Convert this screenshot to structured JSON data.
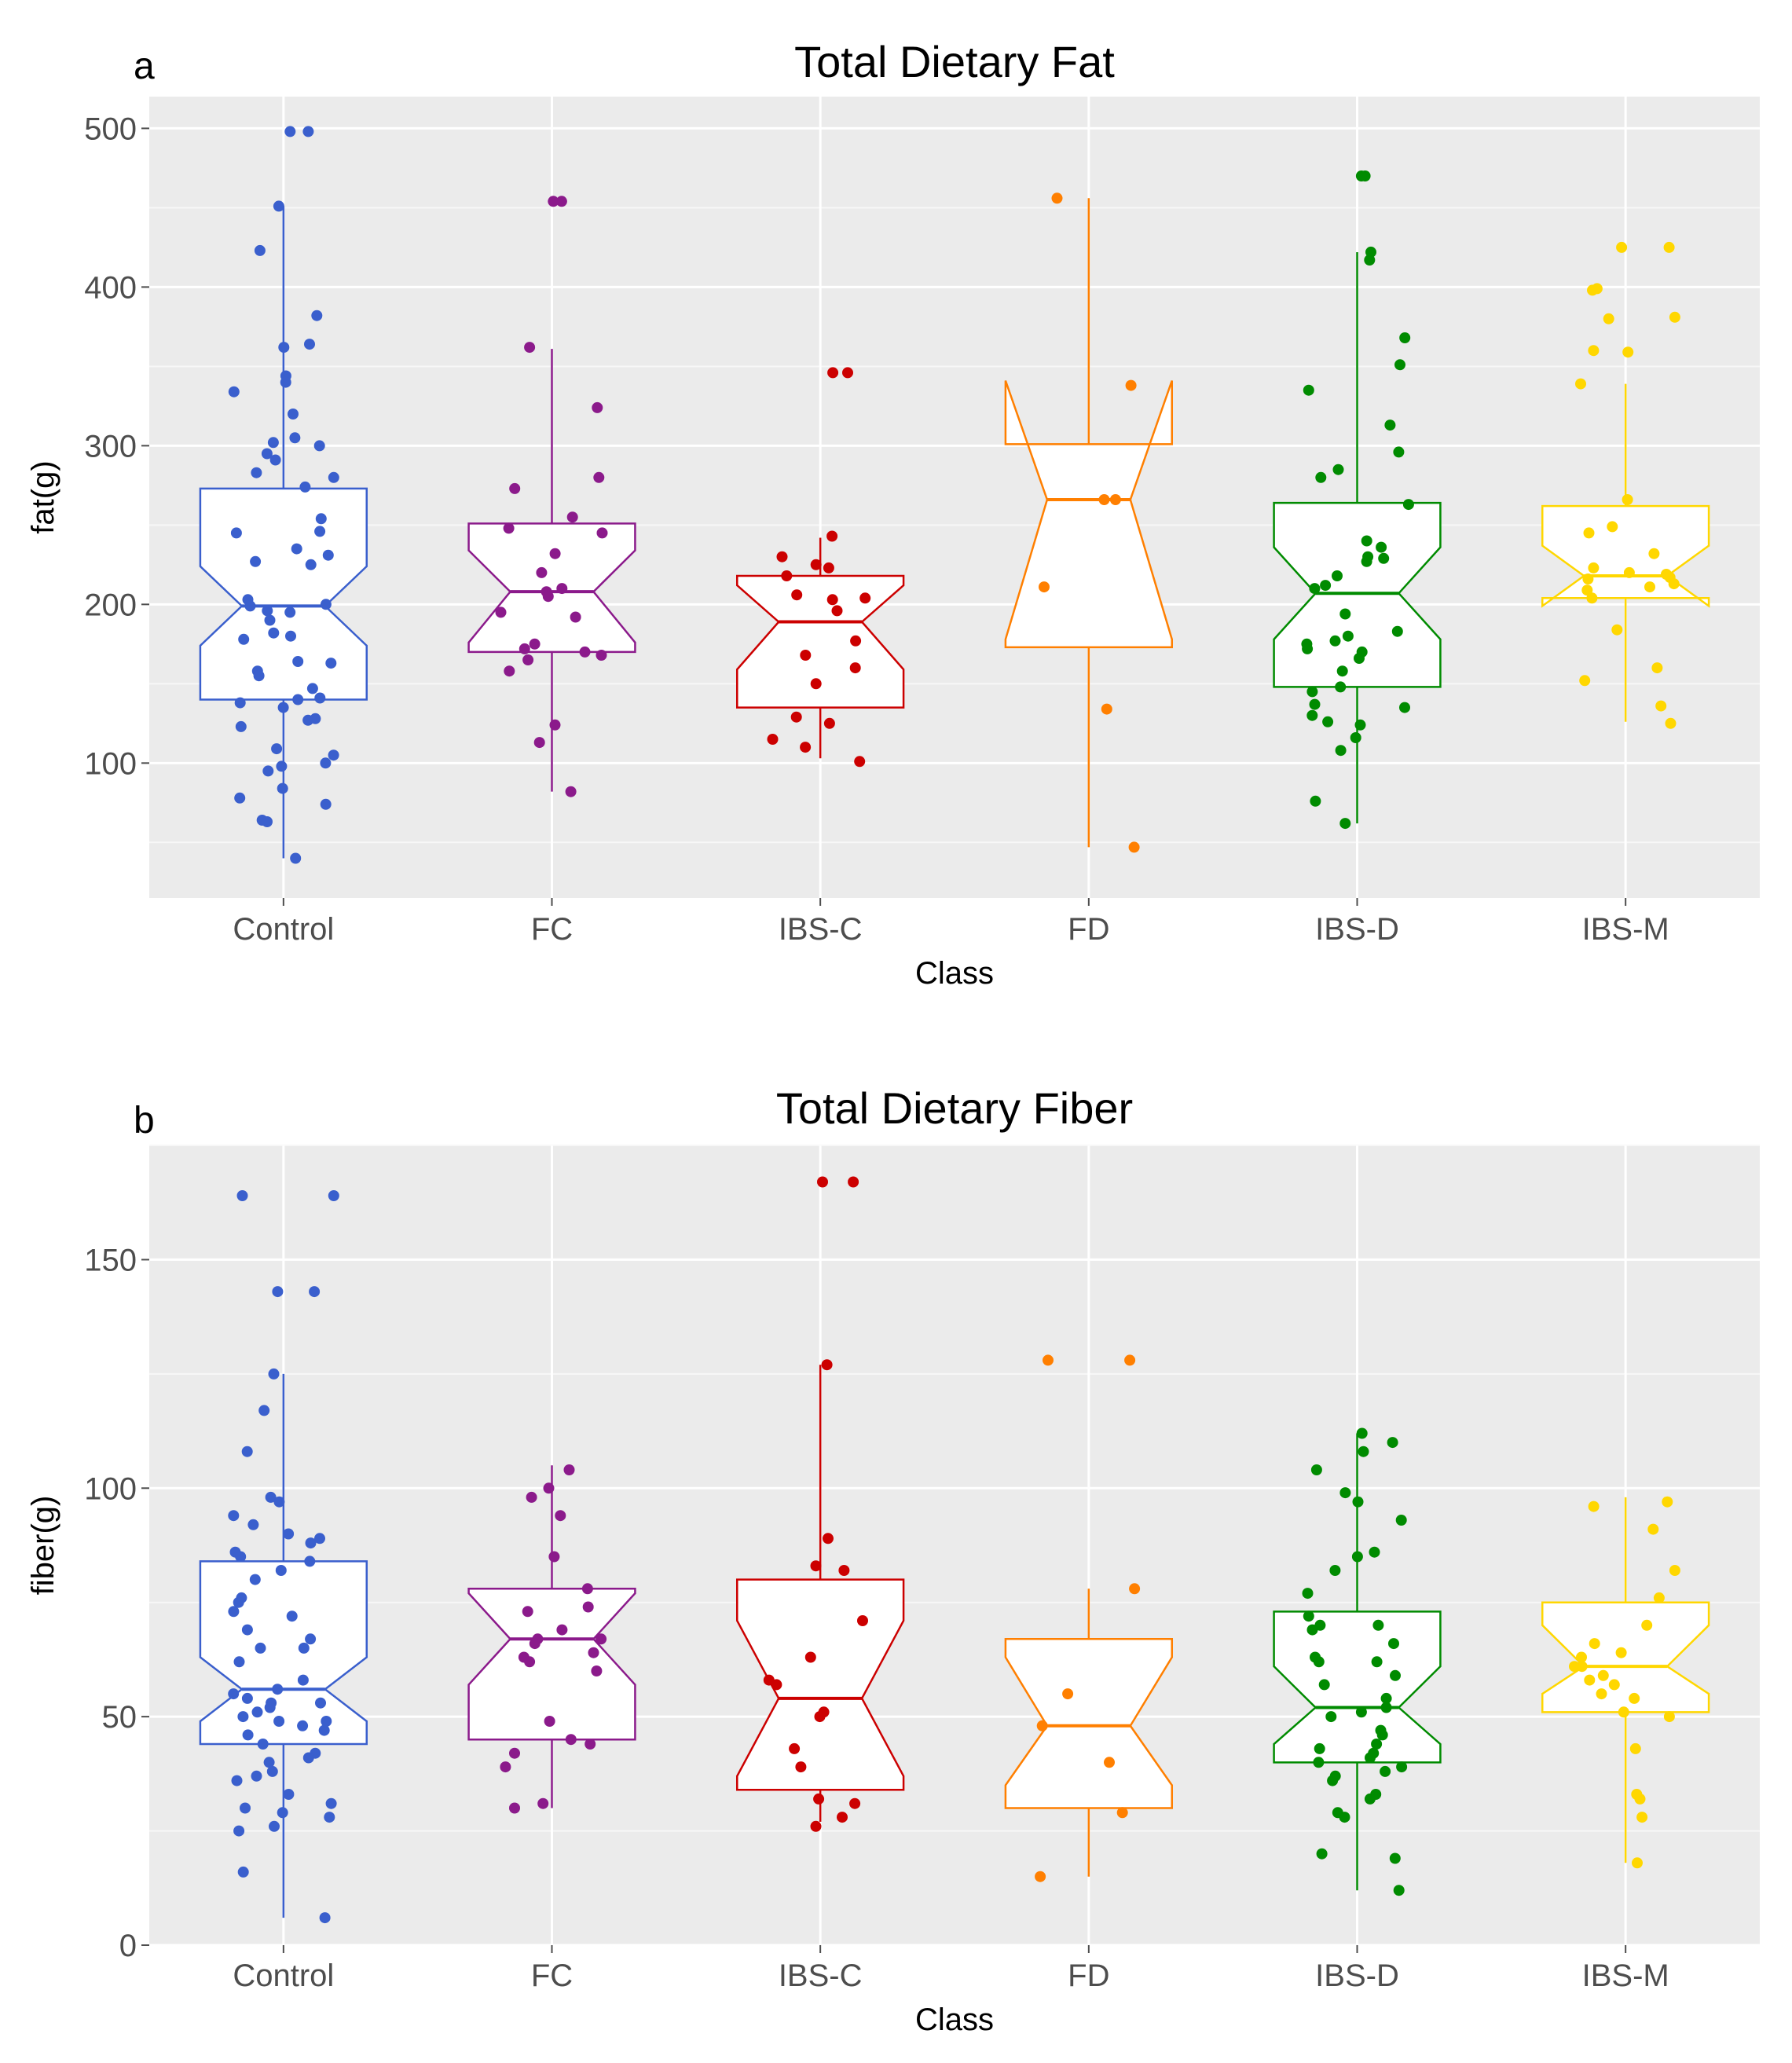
{
  "chart_data": [
    {
      "type": "box",
      "panel_label": "a",
      "title": "Total Dietary Fat",
      "xlabel": "Class",
      "ylabel": "fat(g)",
      "ylim": [
        15,
        520
      ],
      "yticks": [
        100,
        200,
        300,
        400,
        500
      ],
      "categories": [
        "Control",
        "FC",
        "IBS-C",
        "FD",
        "IBS-D",
        "IBS-M"
      ],
      "colors": [
        "#3a5fcd",
        "#8b1a8b",
        "#cc0000",
        "#ff7f00",
        "#008b00",
        "#ffd700"
      ],
      "boxes": [
        {
          "class": "Control",
          "whisker_low": 40,
          "q1": 140,
          "median": 199,
          "q3": 273,
          "whisker_high": 451,
          "notch": [
            174,
            224
          ]
        },
        {
          "class": "FC",
          "whisker_low": 82,
          "q1": 170,
          "median": 208,
          "q3": 251,
          "whisker_high": 361,
          "notch": [
            176,
            234
          ]
        },
        {
          "class": "IBS-C",
          "whisker_low": 103,
          "q1": 135,
          "median": 189,
          "q3": 218,
          "whisker_high": 242,
          "notch": [
            159,
            212
          ]
        },
        {
          "class": "FD",
          "whisker_low": 47,
          "q1": 173,
          "median": 266,
          "q3": 301,
          "whisker_high": 456,
          "notch": [
            178,
            341
          ]
        },
        {
          "class": "IBS-D",
          "whisker_low": 62,
          "q1": 148,
          "median": 207,
          "q3": 264,
          "whisker_high": 422,
          "notch": [
            178,
            236
          ]
        },
        {
          "class": "IBS-M",
          "whisker_low": 126,
          "q1": 204,
          "median": 218,
          "q3": 262,
          "whisker_high": 339,
          "notch": [
            199,
            237
          ]
        }
      ],
      "points": [
        {
          "class": "Control",
          "values": [
            498,
            498,
            451,
            423,
            382,
            364,
            362,
            344,
            340,
            334,
            320,
            305,
            302,
            300,
            295,
            291,
            283,
            280,
            274,
            254,
            246,
            245,
            235,
            231,
            227,
            225,
            203,
            200,
            199,
            196,
            195,
            190,
            182,
            180,
            178,
            164,
            163,
            158,
            155,
            147,
            141,
            140,
            138,
            135,
            128,
            127,
            123,
            109,
            105,
            100,
            98,
            95,
            84,
            78,
            74,
            64,
            63,
            40
          ]
        },
        {
          "class": "FC",
          "values": [
            454,
            454,
            362,
            324,
            280,
            273,
            255,
            248,
            245,
            232,
            220,
            210,
            208,
            205,
            195,
            192,
            175,
            172,
            170,
            168,
            165,
            158,
            124,
            113,
            82
          ]
        },
        {
          "class": "IBS-C",
          "values": [
            346,
            346,
            243,
            230,
            225,
            223,
            218,
            206,
            204,
            203,
            196,
            177,
            168,
            160,
            150,
            129,
            125,
            115,
            110,
            101
          ]
        },
        {
          "class": "FD",
          "values": [
            456,
            338,
            266,
            266,
            211,
            134,
            47
          ]
        },
        {
          "class": "IBS-D",
          "values": [
            470,
            470,
            422,
            417,
            368,
            351,
            335,
            313,
            296,
            285,
            280,
            263,
            240,
            236,
            230,
            229,
            227,
            218,
            212,
            210,
            194,
            183,
            180,
            177,
            175,
            172,
            170,
            166,
            158,
            148,
            145,
            137,
            135,
            130,
            126,
            124,
            116,
            108,
            76,
            62
          ]
        },
        {
          "class": "IBS-M",
          "values": [
            425,
            425,
            399,
            398,
            381,
            380,
            360,
            359,
            339,
            266,
            249,
            245,
            232,
            223,
            220,
            219,
            217,
            216,
            213,
            211,
            209,
            204,
            184,
            160,
            152,
            136,
            125
          ]
        }
      ]
    },
    {
      "type": "box",
      "panel_label": "b",
      "title": "Total Dietary Fiber",
      "xlabel": "Class",
      "ylabel": "fiber(g)",
      "ylim": [
        0,
        175
      ],
      "yticks": [
        0,
        50,
        100,
        150
      ],
      "categories": [
        "Control",
        "FC",
        "IBS-C",
        "FD",
        "IBS-D",
        "IBS-M"
      ],
      "colors": [
        "#3a5fcd",
        "#8b1a8b",
        "#cc0000",
        "#ff7f00",
        "#008b00",
        "#ffd700"
      ],
      "boxes": [
        {
          "class": "Control",
          "whisker_low": 6,
          "q1": 44,
          "median": 56,
          "q3": 84,
          "whisker_high": 125,
          "notch": [
            49,
            63
          ]
        },
        {
          "class": "FC",
          "whisker_low": 30,
          "q1": 45,
          "median": 67,
          "q3": 78,
          "whisker_high": 105,
          "notch": [
            57,
            77
          ]
        },
        {
          "class": "IBS-C",
          "whisker_low": 27,
          "q1": 34,
          "median": 54,
          "q3": 80,
          "whisker_high": 127,
          "notch": [
            37,
            71
          ]
        },
        {
          "class": "FD",
          "whisker_low": 15,
          "q1": 30,
          "median": 48,
          "q3": 67,
          "whisker_high": 78,
          "notch": [
            35,
            63
          ]
        },
        {
          "class": "IBS-D",
          "whisker_low": 12,
          "q1": 40,
          "median": 52,
          "q3": 73,
          "whisker_high": 112,
          "notch": [
            44,
            61
          ]
        },
        {
          "class": "IBS-M",
          "whisker_low": 18,
          "q1": 51,
          "median": 61,
          "q3": 75,
          "whisker_high": 98,
          "notch": [
            55,
            70
          ]
        }
      ],
      "points": [
        {
          "class": "Control",
          "values": [
            164,
            164,
            143,
            143,
            125,
            117,
            108,
            98,
            97,
            94,
            92,
            90,
            89,
            88,
            86,
            85,
            84,
            82,
            80,
            76,
            75,
            73,
            72,
            69,
            67,
            65,
            65,
            62,
            58,
            56,
            55,
            54,
            53,
            53,
            52,
            51,
            50,
            49,
            49,
            48,
            47,
            46,
            44,
            42,
            41,
            40,
            38,
            37,
            36,
            33,
            31,
            30,
            29,
            28,
            26,
            25,
            16,
            6
          ]
        },
        {
          "class": "FC",
          "values": [
            104,
            100,
            98,
            94,
            85,
            78,
            74,
            73,
            69,
            67,
            67,
            66,
            64,
            63,
            62,
            60,
            49,
            45,
            44,
            42,
            39,
            31,
            30
          ]
        },
        {
          "class": "IBS-C",
          "values": [
            167,
            167,
            127,
            89,
            83,
            82,
            71,
            63,
            58,
            57,
            51,
            50,
            43,
            39,
            32,
            31,
            28,
            26
          ]
        },
        {
          "class": "FD",
          "values": [
            128,
            128,
            78,
            55,
            48,
            40,
            29,
            15
          ]
        },
        {
          "class": "IBS-D",
          "values": [
            112,
            110,
            108,
            104,
            99,
            97,
            93,
            86,
            85,
            82,
            77,
            72,
            70,
            70,
            69,
            66,
            63,
            62,
            62,
            59,
            57,
            54,
            52,
            51,
            50,
            47,
            46,
            44,
            43,
            42,
            41,
            40,
            39,
            38,
            37,
            36,
            33,
            32,
            29,
            28,
            20,
            19,
            12
          ]
        },
        {
          "class": "IBS-M",
          "values": [
            97,
            96,
            91,
            82,
            76,
            70,
            66,
            64,
            63,
            61,
            61,
            59,
            58,
            57,
            55,
            54,
            51,
            50,
            43,
            33,
            32,
            28,
            18
          ]
        }
      ]
    }
  ]
}
